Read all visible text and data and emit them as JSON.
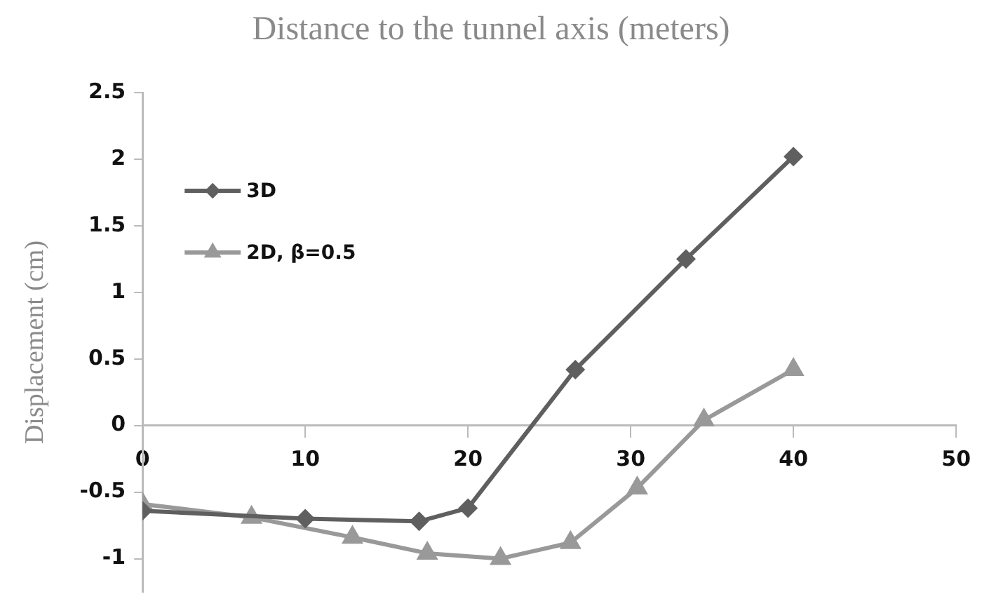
{
  "chart_data": {
    "type": "line",
    "title": "Distance to the tunnel axis (meters)",
    "ylabel": "Displacement (cm)",
    "series": [
      {
        "name": "3D",
        "color": "#5f5f5f",
        "marker": "diamond",
        "x": [
          0,
          10,
          17,
          20,
          26.6,
          33.4,
          40
        ],
        "values": [
          -0.64,
          -0.7,
          -0.72,
          -0.62,
          0.42,
          1.25,
          2.02
        ]
      },
      {
        "name": "2D, β=0.5",
        "color": "#999999",
        "marker": "triangle",
        "x": [
          0,
          6.7,
          12.9,
          17.5,
          22,
          26.3,
          30.4,
          34.5,
          40
        ],
        "values": [
          -0.59,
          -0.69,
          -0.84,
          -0.96,
          -1.0,
          -0.88,
          -0.47,
          0.04,
          0.42
        ]
      }
    ],
    "xlim": [
      0,
      50
    ],
    "xticks": [
      0,
      10,
      20,
      30,
      40,
      50
    ],
    "ylim": [
      -1.25,
      2.5
    ],
    "yticks": [
      -1,
      -0.5,
      0,
      0.5,
      1,
      1.5,
      2,
      2.5
    ],
    "grid": false,
    "legend": "top left",
    "line_style": "solid"
  }
}
